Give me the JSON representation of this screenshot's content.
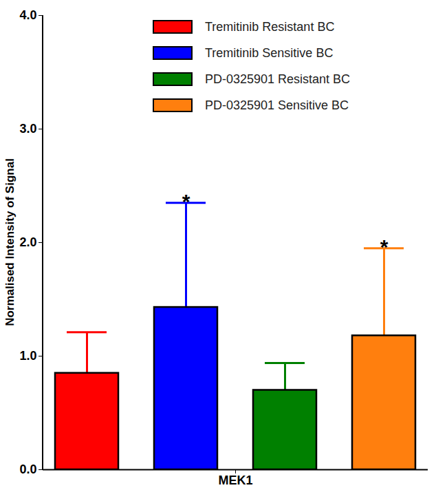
{
  "chart_data": {
    "type": "bar",
    "y_label": "Normalised Intensity of Signal",
    "categories": [
      "MEK1"
    ],
    "ylim": [
      0,
      4
    ],
    "yticks": [
      0,
      1,
      2,
      3,
      4
    ],
    "legend": "upper right",
    "series": [
      {
        "name": "Tremitinib Resistant BC",
        "color": "#ff0000",
        "values": [
          0.85
        ],
        "errors": [
          0.36
        ]
      },
      {
        "name": "Tremitinib Sensitive BC",
        "color": "#0000ff",
        "values": [
          1.43
        ],
        "errors": [
          0.92
        ]
      },
      {
        "name": "PD-0325901 Resistant BC",
        "color": "#008000",
        "values": [
          0.7
        ],
        "errors": [
          0.24
        ]
      },
      {
        "name": "PD-0325901 Sensitive BC",
        "color": "#ff7f0e",
        "values": [
          1.18
        ],
        "errors": [
          0.77
        ]
      }
    ],
    "annotations": [
      {
        "series": "Tremitinib Sensitive BC",
        "category": "MEK1",
        "text": "*"
      },
      {
        "series": "PD-0325901 Sensitive BC",
        "category": "MEK1",
        "text": "*"
      }
    ]
  }
}
